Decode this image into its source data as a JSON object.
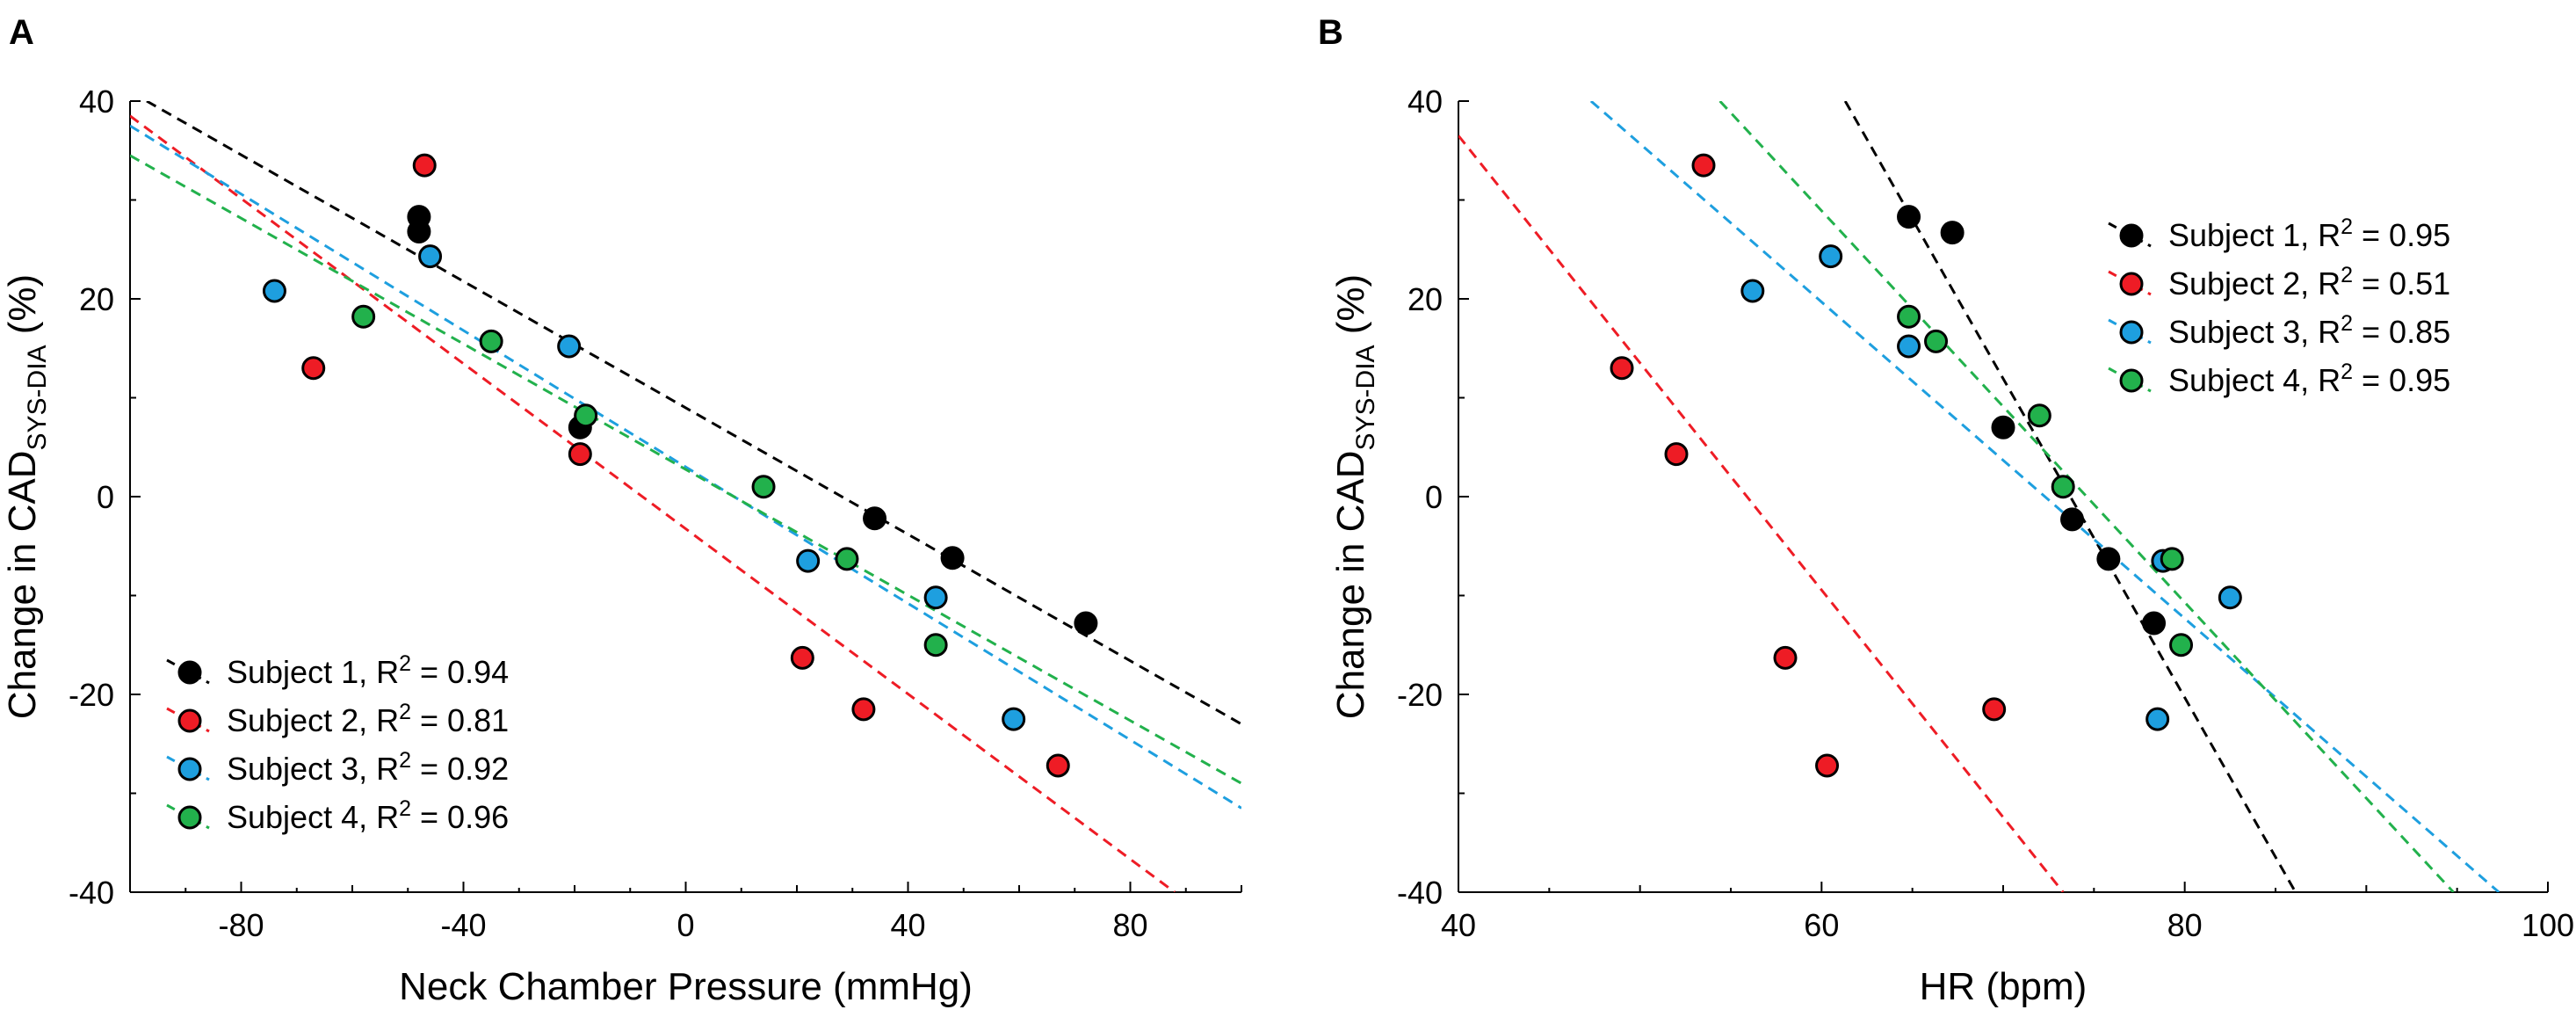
{
  "chart_data": [
    {
      "panel_label": "A",
      "type": "scatter",
      "xlabel": "Neck Chamber Pressure (mmHg)",
      "ylabel": {
        "prefix": "Change in CAD",
        "subscript": "SYS-DIA",
        "suffix": " (%)"
      },
      "xlim": [
        -100,
        100
      ],
      "ylim": [
        -40,
        40
      ],
      "xticks": [
        -80,
        -40,
        0,
        40,
        80
      ],
      "yticks": [
        -40,
        -20,
        0,
        20,
        40
      ],
      "grid": false,
      "legend_position": "bottom-left",
      "series": [
        {
          "name": "Subject 1",
          "r2": "R",
          "r2sup": "2",
          "r2val": " = 0.94",
          "color": "#000000",
          "points": [
            [
              -48,
              28.3
            ],
            [
              -48,
              26.8
            ],
            [
              -19,
              7
            ],
            [
              34,
              -2.2
            ],
            [
              48,
              -6.2
            ],
            [
              72,
              -12.8
            ]
          ],
          "fit": [
            [
              -97,
              40
            ],
            [
              100,
              -23
            ]
          ]
        },
        {
          "name": "Subject 2",
          "r2": "R",
          "r2sup": "2",
          "r2val": " = 0.81",
          "color": "#ee1c25",
          "points": [
            [
              -47,
              33.5
            ],
            [
              -67,
              13
            ],
            [
              -19,
              4.3
            ],
            [
              21,
              -16.3
            ],
            [
              32,
              -21.5
            ],
            [
              67,
              -27.2
            ]
          ],
          "fit": [
            [
              -100,
              38.5
            ],
            [
              88,
              -40
            ]
          ]
        },
        {
          "name": "Subject 3",
          "r2": "R",
          "r2sup": "2",
          "r2val": " = 0.92",
          "color": "#1e9fdf",
          "points": [
            [
              -46,
              24.3
            ],
            [
              -74,
              20.8
            ],
            [
              -21,
              15.2
            ],
            [
              22,
              -6.5
            ],
            [
              45,
              -10.2
            ],
            [
              59,
              -22.5
            ]
          ],
          "fit": [
            [
              -100,
              37.5
            ],
            [
              100,
              -31.5
            ]
          ]
        },
        {
          "name": "Subject 4",
          "r2": "R",
          "r2sup": "2",
          "r2val": " = 0.96",
          "color": "#22b14c",
          "points": [
            [
              -58,
              18.2
            ],
            [
              -35,
              15.7
            ],
            [
              -18,
              8.2
            ],
            [
              14,
              1
            ],
            [
              29,
              -6.3
            ],
            [
              45,
              -15
            ]
          ],
          "fit": [
            [
              -100,
              34.5
            ],
            [
              100,
              -29
            ]
          ]
        }
      ]
    },
    {
      "panel_label": "B",
      "type": "scatter",
      "xlabel": "HR (bpm)",
      "ylabel": {
        "prefix": "Change in CAD",
        "subscript": "SYS-DIA",
        "suffix": " (%)"
      },
      "xlim": [
        40,
        100
      ],
      "ylim": [
        -40,
        40
      ],
      "xticks": [
        40,
        60,
        80,
        100
      ],
      "yticks": [
        -40,
        -20,
        0,
        20,
        40
      ],
      "grid": false,
      "legend_position": "top-right",
      "series": [
        {
          "name": "Subject 1",
          "r2": "R",
          "r2sup": "2",
          "r2val": " = 0.95",
          "color": "#000000",
          "points": [
            [
              64.8,
              28.3
            ],
            [
              67.2,
              26.7
            ],
            [
              70,
              7
            ],
            [
              73.8,
              -2.3
            ],
            [
              75.8,
              -6.3
            ],
            [
              78.3,
              -12.8
            ]
          ],
          "fit": [
            [
              61.3,
              40
            ],
            [
              86.1,
              -40
            ]
          ]
        },
        {
          "name": "Subject 2",
          "r2": "R",
          "r2sup": "2",
          "r2val": " = 0.51",
          "color": "#ee1c25",
          "points": [
            [
              53.5,
              33.5
            ],
            [
              49,
              13
            ],
            [
              52,
              4.3
            ],
            [
              58,
              -16.3
            ],
            [
              69.5,
              -21.5
            ],
            [
              60.3,
              -27.2
            ]
          ],
          "fit": [
            [
              40,
              36.5
            ],
            [
              73.3,
              -40
            ]
          ]
        },
        {
          "name": "Subject 3",
          "r2": "R",
          "r2sup": "2",
          "r2val": " = 0.85",
          "color": "#1e9fdf",
          "points": [
            [
              60.5,
              24.3
            ],
            [
              56.2,
              20.8
            ],
            [
              64.8,
              15.2
            ],
            [
              78.8,
              -6.5
            ],
            [
              82.5,
              -10.2
            ],
            [
              78.5,
              -22.5
            ]
          ],
          "fit": [
            [
              47.3,
              40
            ],
            [
              97.3,
              -40
            ]
          ]
        },
        {
          "name": "Subject 4",
          "r2": "R",
          "r2sup": "2",
          "r2val": " = 0.95",
          "color": "#22b14c",
          "points": [
            [
              64.8,
              18.2
            ],
            [
              66.3,
              15.7
            ],
            [
              72,
              8.2
            ],
            [
              73.3,
              1
            ],
            [
              79.3,
              -6.3
            ],
            [
              79.8,
              -15
            ]
          ],
          "fit": [
            [
              54.4,
              40
            ],
            [
              94.8,
              -40
            ]
          ]
        }
      ]
    }
  ]
}
